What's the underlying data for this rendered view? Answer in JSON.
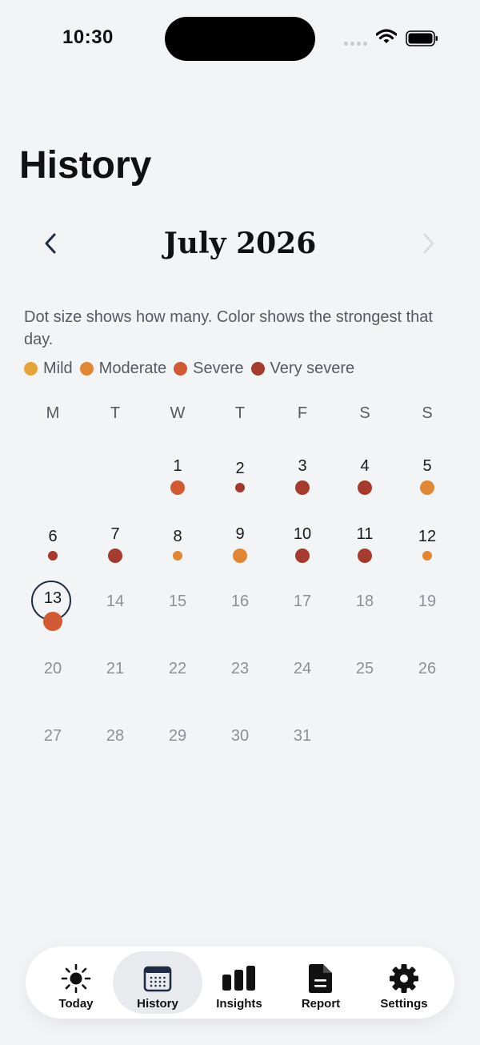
{
  "status_bar": {
    "time": "10:30"
  },
  "page_title": "History",
  "month": {
    "title": "July 2026"
  },
  "legend": {
    "description": "Dot size shows how many. Color shows the strongest that day.",
    "items": [
      {
        "label": "Mild",
        "color": "#e3a53a"
      },
      {
        "label": "Moderate",
        "color": "#e08735"
      },
      {
        "label": "Severe",
        "color": "#cf5a33"
      },
      {
        "label": "Very severe",
        "color": "#a53a2e"
      }
    ]
  },
  "weekdays": [
    "M",
    "T",
    "W",
    "T",
    "F",
    "S",
    "S"
  ],
  "today": 13,
  "days": [
    {
      "day": "1",
      "severity": "Severe",
      "size": "large"
    },
    {
      "day": "2",
      "severity": "Very severe",
      "size": "small"
    },
    {
      "day": "3",
      "severity": "Very severe",
      "size": "large"
    },
    {
      "day": "4",
      "severity": "Very severe",
      "size": "large"
    },
    {
      "day": "5",
      "severity": "Moderate",
      "size": "large"
    },
    {
      "day": "6",
      "severity": "Very severe",
      "size": "small"
    },
    {
      "day": "7",
      "severity": "Very severe",
      "size": "large"
    },
    {
      "day": "8",
      "severity": "Moderate",
      "size": "small"
    },
    {
      "day": "9",
      "severity": "Moderate",
      "size": "large"
    },
    {
      "day": "10",
      "severity": "Very severe",
      "size": "large"
    },
    {
      "day": "11",
      "severity": "Very severe",
      "size": "large"
    },
    {
      "day": "12",
      "severity": "Moderate",
      "size": "small"
    },
    {
      "day": "13",
      "severity": "Severe",
      "size": "xlarge"
    },
    {
      "day": "14"
    },
    {
      "day": "15"
    },
    {
      "day": "16"
    },
    {
      "day": "17"
    },
    {
      "day": "18"
    },
    {
      "day": "19"
    },
    {
      "day": "20"
    },
    {
      "day": "21"
    },
    {
      "day": "22"
    },
    {
      "day": "23"
    },
    {
      "day": "24"
    },
    {
      "day": "25"
    },
    {
      "day": "26"
    },
    {
      "day": "27"
    },
    {
      "day": "28"
    },
    {
      "day": "29"
    },
    {
      "day": "30"
    },
    {
      "day": "31"
    }
  ],
  "tabs": [
    {
      "label": "Today",
      "icon": "sun-icon",
      "active": false
    },
    {
      "label": "History",
      "icon": "calendar-icon",
      "active": true
    },
    {
      "label": "Insights",
      "icon": "bar-chart-icon",
      "active": false
    },
    {
      "label": "Report",
      "icon": "document-icon",
      "active": false
    },
    {
      "label": "Settings",
      "icon": "gear-icon",
      "active": false
    }
  ]
}
